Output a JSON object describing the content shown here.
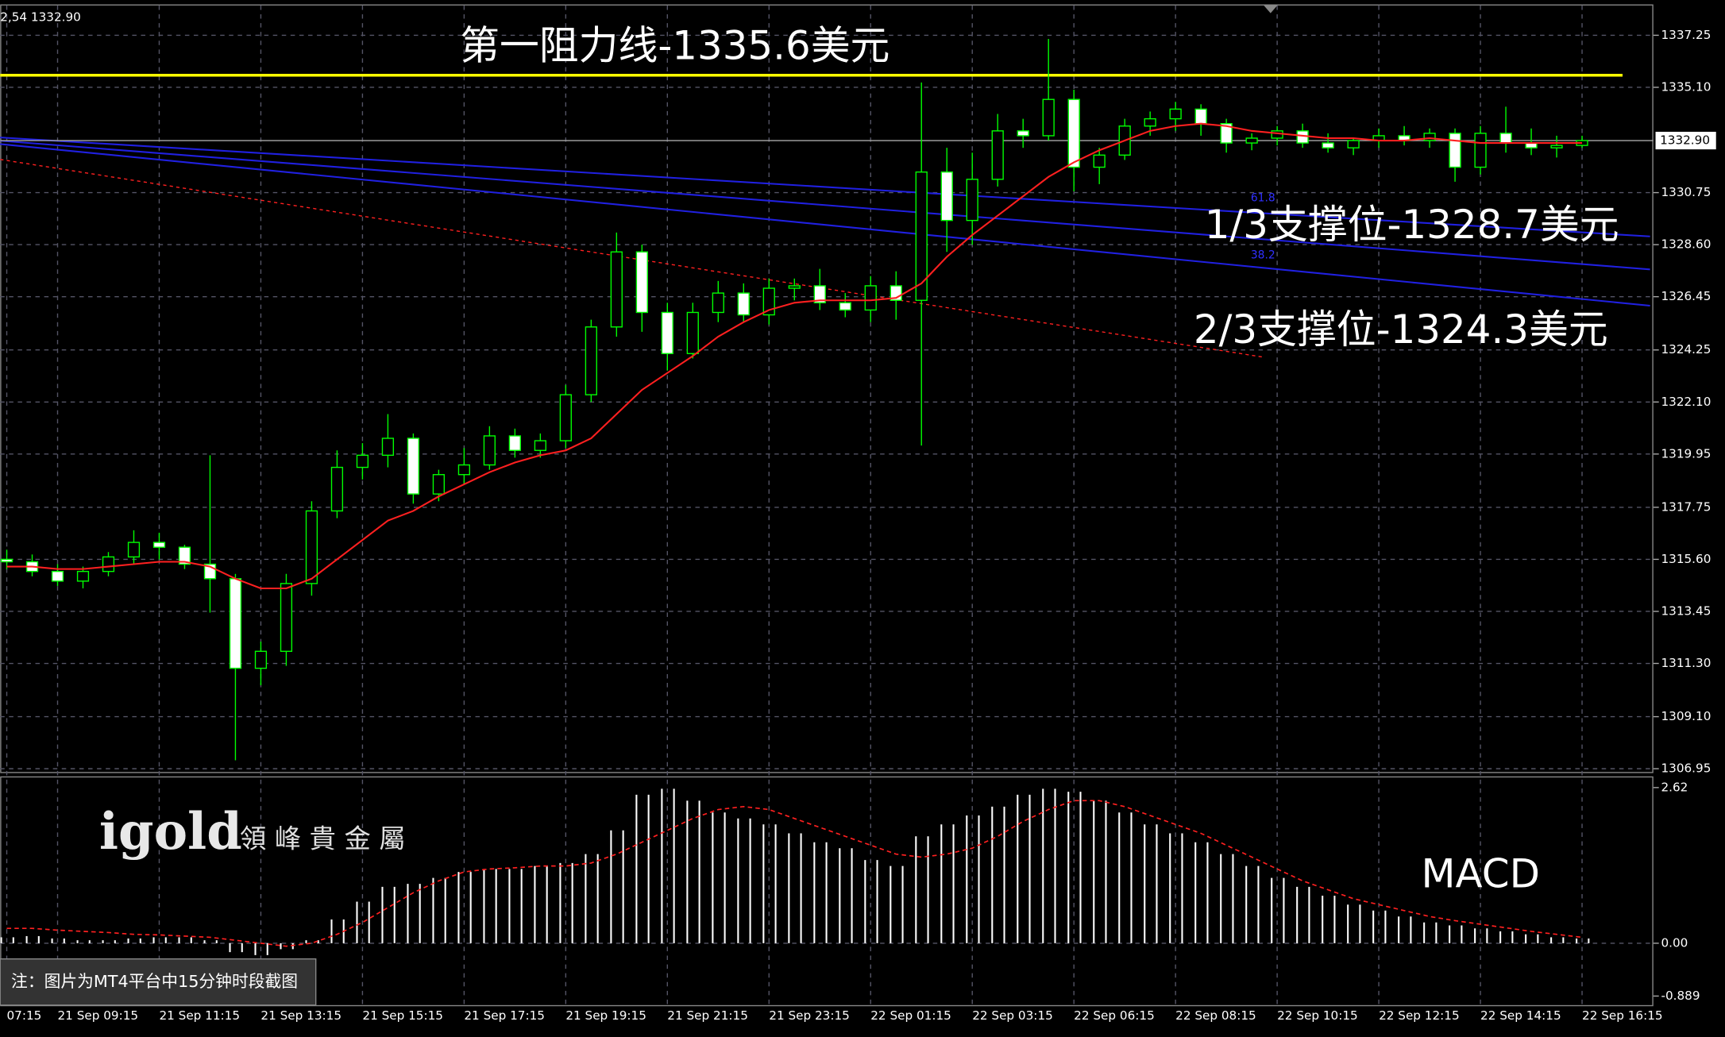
{
  "chart_data": [
    {
      "type": "candlestick",
      "header": "2,54 1332.90",
      "categories": [
        "07:15",
        null,
        "21 Sep 09:15",
        null,
        null,
        null,
        "21 Sep 11:15",
        null,
        null,
        null,
        "21 Sep 13:15",
        null,
        null,
        null,
        "21 Sep 15:15",
        null,
        null,
        null,
        "21 Sep 17:15",
        null,
        null,
        null,
        "21 Sep 19:15",
        null,
        null,
        null,
        "21 Sep 21:15",
        null,
        null,
        null,
        "21 Sep 23:15",
        null,
        null,
        null,
        "22 Sep 01:15",
        null,
        null,
        null,
        "22 Sep 03:15",
        null,
        null,
        null,
        "22 Sep 06:15",
        null,
        null,
        null,
        "22 Sep 08:15",
        null,
        null,
        null,
        "22 Sep 10:15",
        null,
        null,
        null,
        "22 Sep 12:15",
        null,
        null,
        null,
        "22 Sep 14:15",
        null,
        null,
        null,
        "22 Sep 16:15"
      ],
      "open": [
        1315.6,
        1315.5,
        1315.1,
        1314.7,
        1315.1,
        1315.7,
        1316.3,
        1316.1,
        1315.4,
        1314.8,
        1311.1,
        1311.8,
        1314.6,
        1317.6,
        1319.4,
        1319.9,
        1320.6,
        1318.3,
        1319.1,
        1319.5,
        1320.7,
        1320.1,
        1320.5,
        1322.4,
        1325.2,
        1328.3,
        1325.8,
        1324.1,
        1325.8,
        1326.6,
        1325.7,
        1326.8,
        1326.9,
        1326.2,
        1325.9,
        1326.9,
        1326.3,
        1331.6,
        1329.6,
        1331.3,
        1333.3,
        1333.1,
        1334.6,
        1331.8,
        1332.3,
        1333.5,
        1333.8,
        1334.2,
        1333.6,
        1332.8,
        1333.0,
        1333.3,
        1332.8,
        1332.6,
        1332.9,
        1333.1,
        1332.9,
        1333.2,
        1331.8,
        1333.2,
        1332.8,
        1332.6,
        1332.7
      ],
      "high": [
        1316.0,
        1315.8,
        1315.4,
        1315.3,
        1315.9,
        1316.8,
        1316.7,
        1316.2,
        1319.9,
        1315.0,
        1312.2,
        1315.0,
        1318.0,
        1320.1,
        1320.4,
        1321.6,
        1320.8,
        1319.3,
        1320.2,
        1321.1,
        1321.0,
        1320.8,
        1322.8,
        1325.5,
        1329.1,
        1328.6,
        1326.2,
        1326.2,
        1327.1,
        1327.0,
        1327.2,
        1327.2,
        1327.6,
        1326.6,
        1327.3,
        1327.5,
        1335.3,
        1332.6,
        1332.4,
        1334.0,
        1333.8,
        1337.1,
        1335.0,
        1332.6,
        1333.8,
        1334.1,
        1334.5,
        1334.4,
        1333.8,
        1333.2,
        1333.5,
        1333.6,
        1333.2,
        1333.0,
        1333.4,
        1333.5,
        1333.4,
        1333.4,
        1333.5,
        1334.3,
        1333.4,
        1333.1,
        1333.1
      ],
      "low": [
        1315.2,
        1314.9,
        1314.5,
        1314.4,
        1314.9,
        1315.4,
        1315.6,
        1315.2,
        1313.4,
        1307.3,
        1310.4,
        1311.2,
        1314.1,
        1317.3,
        1318.9,
        1319.4,
        1317.9,
        1318.0,
        1318.7,
        1319.3,
        1319.8,
        1319.8,
        1320.2,
        1322.1,
        1324.8,
        1325.0,
        1323.4,
        1323.9,
        1325.4,
        1325.4,
        1325.3,
        1326.3,
        1325.9,
        1325.6,
        1325.4,
        1325.5,
        1320.3,
        1328.3,
        1328.6,
        1331.0,
        1332.6,
        1332.9,
        1330.8,
        1331.1,
        1332.1,
        1333.1,
        1333.3,
        1333.1,
        1332.4,
        1332.5,
        1332.7,
        1332.6,
        1332.4,
        1332.3,
        1332.6,
        1332.7,
        1332.6,
        1331.2,
        1331.5,
        1332.4,
        1332.3,
        1332.2,
        1332.6
      ],
      "close": [
        1315.5,
        1315.1,
        1314.7,
        1315.1,
        1315.7,
        1316.3,
        1316.1,
        1315.4,
        1314.8,
        1311.1,
        1311.8,
        1314.6,
        1317.6,
        1319.4,
        1319.9,
        1320.6,
        1318.3,
        1319.1,
        1319.5,
        1320.7,
        1320.1,
        1320.5,
        1322.4,
        1325.2,
        1328.3,
        1325.8,
        1324.1,
        1325.8,
        1326.6,
        1325.7,
        1326.8,
        1326.9,
        1326.2,
        1325.9,
        1326.9,
        1326.3,
        1331.6,
        1329.6,
        1331.3,
        1333.3,
        1333.1,
        1334.6,
        1331.8,
        1332.3,
        1333.5,
        1333.8,
        1334.2,
        1333.6,
        1332.8,
        1333.0,
        1333.3,
        1332.8,
        1332.6,
        1332.9,
        1333.1,
        1332.9,
        1333.2,
        1331.8,
        1333.2,
        1332.8,
        1332.6,
        1332.7,
        1332.9
      ],
      "up_color": "#00ff00",
      "down_color": "#ffffff",
      "ma": {
        "color": "#ff2020",
        "values": [
          1315.3,
          1315.3,
          1315.2,
          1315.2,
          1315.3,
          1315.4,
          1315.5,
          1315.5,
          1315.3,
          1314.8,
          1314.4,
          1314.4,
          1314.8,
          1315.6,
          1316.4,
          1317.2,
          1317.6,
          1318.2,
          1318.7,
          1319.2,
          1319.6,
          1319.9,
          1320.1,
          1320.6,
          1321.6,
          1322.6,
          1323.3,
          1324.0,
          1324.8,
          1325.4,
          1325.9,
          1326.2,
          1326.3,
          1326.3,
          1326.3,
          1326.4,
          1327.0,
          1328.1,
          1329.0,
          1329.8,
          1330.6,
          1331.4,
          1332.0,
          1332.5,
          1332.9,
          1333.3,
          1333.5,
          1333.6,
          1333.5,
          1333.3,
          1333.2,
          1333.1,
          1333.0,
          1333.0,
          1332.9,
          1332.9,
          1333.0,
          1332.9,
          1332.8,
          1332.8,
          1332.8,
          1332.8,
          1332.8
        ]
      },
      "ylim": [
        1306.77,
        1338.48
      ],
      "yticks": [
        1337.25,
        {
          "value": 1335.1,
          "label": "1335.10"
        },
        1330.75,
        {
          "value": 1328.6,
          "label": "1328.60"
        },
        1326.45,
        1324.25,
        {
          "value": 1322.1,
          "label": "1322.10"
        },
        1319.95,
        1317.75,
        {
          "value": 1315.6,
          "label": "1315.60"
        },
        1313.45,
        {
          "value": 1311.3,
          "label": "1311.30"
        },
        {
          "value": 1309.1,
          "label": "1309.10"
        },
        1306.95
      ],
      "last_price": {
        "value": 1332.9,
        "label": "1332.90"
      },
      "grid": true,
      "resistance": {
        "text": "第一阻力线-1335.6美元",
        "value": 1335.6,
        "color": "#ffff00"
      },
      "annotations": [
        "1/3支撑位-1328.7美元",
        "2/3支撑位-1324.3美元",
        "61.8",
        "38.2"
      ]
    },
    {
      "type": "bar",
      "label": "MACD",
      "series": [
        {
          "type": "bar",
          "color": "#ffffff",
          "values": [
            0.1,
            0.12,
            0.08,
            0.05,
            0.05,
            0.08,
            0.1,
            0.1,
            0.05,
            -0.15,
            -0.2,
            -0.1,
            0.05,
            0.4,
            0.7,
            0.95,
            1.0,
            1.1,
            1.2,
            1.25,
            1.25,
            1.3,
            1.35,
            1.5,
            1.9,
            2.5,
            2.6,
            2.4,
            2.2,
            2.1,
            2.0,
            1.85,
            1.7,
            1.6,
            1.4,
            1.3,
            1.8,
            2.0,
            2.15,
            2.3,
            2.5,
            2.6,
            2.55,
            2.4,
            2.2,
            2.0,
            1.85,
            1.7,
            1.5,
            1.3,
            1.1,
            0.95,
            0.8,
            0.65,
            0.55,
            0.45,
            0.35,
            0.3,
            0.25,
            0.2,
            0.15,
            0.1,
            0.08
          ]
        },
        {
          "type": "line",
          "color": "#ff2020",
          "dashed": true,
          "values": [
            0.25,
            0.25,
            0.22,
            0.2,
            0.18,
            0.15,
            0.14,
            0.12,
            0.1,
            0.05,
            0.0,
            -0.05,
            0.0,
            0.15,
            0.35,
            0.6,
            0.85,
            1.05,
            1.2,
            1.25,
            1.27,
            1.3,
            1.3,
            1.35,
            1.5,
            1.7,
            1.9,
            2.1,
            2.25,
            2.3,
            2.25,
            2.1,
            1.95,
            1.8,
            1.65,
            1.5,
            1.45,
            1.5,
            1.6,
            1.8,
            2.05,
            2.25,
            2.4,
            2.4,
            2.3,
            2.15,
            2.0,
            1.85,
            1.65,
            1.45,
            1.25,
            1.05,
            0.9,
            0.75,
            0.65,
            0.55,
            0.45,
            0.38,
            0.32,
            0.26,
            0.2,
            0.15,
            0.1
          ]
        }
      ],
      "ylim": [
        -1.06,
        2.79
      ],
      "yticks": [
        2.62,
        {
          "value": 0,
          "label": "0.00"
        },
        -0.889
      ],
      "grid": true
    }
  ],
  "logo": "igold",
  "logo_cn": "領 峰 貴 金 屬",
  "note": "注：图片为MT4平台中15分钟时段截图"
}
